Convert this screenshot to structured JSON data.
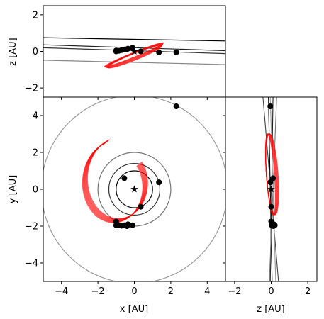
{
  "chart_data": [
    {
      "panel": "xz",
      "type": "line",
      "xlabel": "",
      "ylabel": "z [AU]",
      "xlim": [
        -5,
        5
      ],
      "ylim": [
        -2.5,
        2.5
      ],
      "yticks": [
        -2,
        0,
        2
      ],
      "planets": [
        {
          "name": "",
          "x": [
            -5,
            5
          ],
          "z": [
            0.75,
            0.57
          ],
          "color": "#000000"
        },
        {
          "name": "",
          "x": [
            -5,
            5
          ],
          "z": [
            0.36,
            0.04
          ],
          "color": "#222222"
        },
        {
          "name": "",
          "x": [
            -5,
            5
          ],
          "z": [
            0.2,
            -0.12
          ],
          "color": "#333333"
        },
        {
          "name": "",
          "x": [
            -5,
            5
          ],
          "z": [
            -0.48,
            -0.72
          ],
          "color": "#888888"
        }
      ],
      "orbit": {
        "color": "#ff0000",
        "center": [
          0.0,
          -0.25
        ],
        "semi_major": 1.75,
        "semi_minor": 0.1,
        "tilt_deg": 22
      }
    },
    {
      "panel": "xy",
      "type": "line",
      "xlabel": "x [AU]",
      "ylabel": "y [AU]",
      "xlim": [
        -5,
        5
      ],
      "ylim": [
        -5,
        5
      ],
      "xticks": [
        -4,
        -2,
        0,
        2,
        4
      ],
      "yticks": [
        -4,
        -2,
        0,
        2,
        4
      ],
      "planet_circles": [
        {
          "radius": 1.0,
          "color": "#000000"
        },
        {
          "radius": 1.4,
          "color": "#333333"
        },
        {
          "radius": 2.0,
          "color": "#777777"
        },
        {
          "radius": 5.1,
          "color": "#999999"
        }
      ],
      "orbit": {
        "color": "#ff0000"
      },
      "star": [
        0,
        0
      ]
    },
    {
      "panel": "zy",
      "type": "line",
      "xlabel": "z [AU]",
      "ylabel": "",
      "xlim": [
        -2.5,
        2.5
      ],
      "ylim": [
        -5,
        5
      ],
      "xticks": [
        -2,
        0,
        2
      ],
      "orbit": {
        "color": "#ff0000",
        "center": [
          0.05,
          0.35
        ],
        "semi_major": 2.2,
        "semi_minor": 0.22,
        "tilt_deg": -86
      }
    }
  ],
  "points": [
    {
      "x": 2.3,
      "y": 4.5,
      "z": -0.05
    },
    {
      "x": 1.35,
      "y": 0.38,
      "z": -0.05
    },
    {
      "x": 0.35,
      "y": -0.95,
      "z": 0.0
    },
    {
      "x": -0.55,
      "y": 0.6,
      "z": 0.1
    },
    {
      "x": -1.0,
      "y": -1.75,
      "z": 0.0
    },
    {
      "x": -1.0,
      "y": -1.95,
      "z": 0.05
    },
    {
      "x": -0.85,
      "y": -1.95,
      "z": 0.03
    },
    {
      "x": -0.7,
      "y": -1.98,
      "z": 0.07
    },
    {
      "x": -0.55,
      "y": -1.95,
      "z": 0.1
    },
    {
      "x": -0.35,
      "y": -1.9,
      "z": 0.15
    },
    {
      "x": -0.1,
      "y": -1.95,
      "z": 0.2
    },
    {
      "x": -0.4,
      "y": -2.0,
      "z": 0.12
    }
  ],
  "colors": {
    "orbit": "#ff0000",
    "point": "#000000"
  }
}
